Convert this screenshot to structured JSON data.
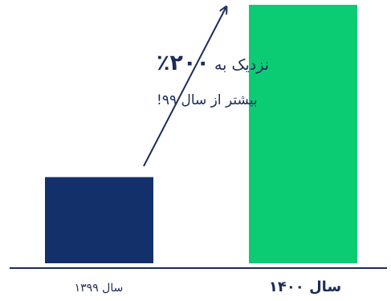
{
  "chart_data": {
    "type": "bar",
    "categories": [
      "سال ۱۳۹۹",
      "سال ۱۴۰۰"
    ],
    "values": [
      1,
      3
    ],
    "annotation": {
      "line1_prefix": "نزدیک به ",
      "line1_emphasis": "۲۰۰٪",
      "line2": "بیشتر از سال ۹۹!"
    },
    "colors": {
      "bar_1399": "#13306b",
      "bar_1400": "#0ccc73",
      "axis": "#1c2c5a",
      "arrow": "#1c2c5a",
      "text": "#1c2c5a"
    }
  }
}
